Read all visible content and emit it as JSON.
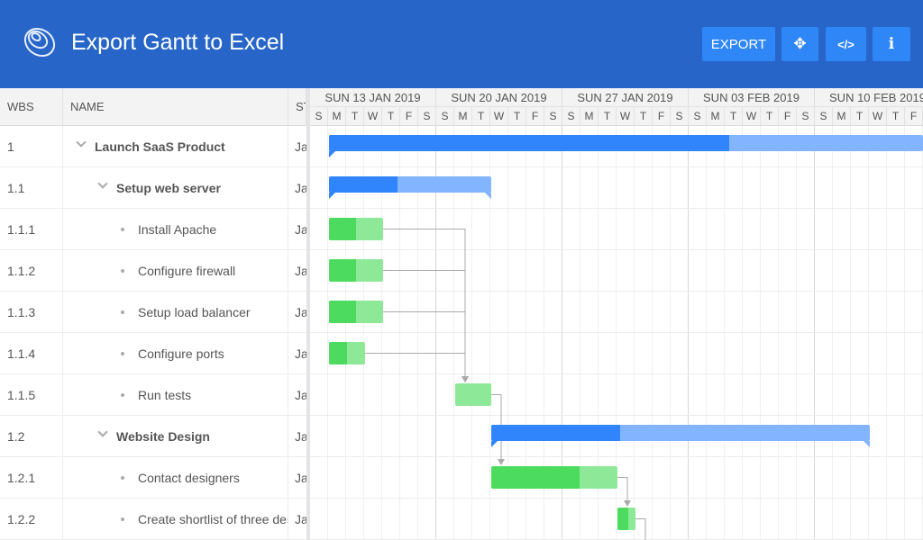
{
  "header": {
    "title": "Export Gantt to Excel",
    "buttons": [
      {
        "label": "EXPORT",
        "icon": "export"
      },
      {
        "label": "✥",
        "icon": "move-icon"
      },
      {
        "label": "</>",
        "icon": "code-icon"
      },
      {
        "label": "i",
        "icon": "info-icon"
      }
    ]
  },
  "colors": {
    "header": "#2766c8",
    "button": "#2f86f6",
    "parent_done": "#3185fc",
    "parent_todo": "#83b4ff",
    "task_done": "#4cdb5e",
    "task_todo": "#8de998"
  },
  "grid": {
    "columns": [
      "WBS",
      "NAME",
      "ST"
    ],
    "rows": [
      {
        "wbs": "1",
        "name": "Launch SaaS Product",
        "start": "Ja",
        "level": 0,
        "parent": true
      },
      {
        "wbs": "1.1",
        "name": "Setup web server",
        "start": "Ja",
        "level": 1,
        "parent": true
      },
      {
        "wbs": "1.1.1",
        "name": "Install Apache",
        "start": "Ja",
        "level": 2,
        "parent": false
      },
      {
        "wbs": "1.1.2",
        "name": "Configure firewall",
        "start": "Ja",
        "level": 2,
        "parent": false
      },
      {
        "wbs": "1.1.3",
        "name": "Setup load balancer",
        "start": "Ja",
        "level": 2,
        "parent": false
      },
      {
        "wbs": "1.1.4",
        "name": "Configure ports",
        "start": "Ja",
        "level": 2,
        "parent": false
      },
      {
        "wbs": "1.1.5",
        "name": "Run tests",
        "start": "Ja",
        "level": 2,
        "parent": false
      },
      {
        "wbs": "1.2",
        "name": "Website Design",
        "start": "Ja",
        "level": 1,
        "parent": true
      },
      {
        "wbs": "1.2.1",
        "name": "Contact designers",
        "start": "Ja",
        "level": 2,
        "parent": false
      },
      {
        "wbs": "1.2.2",
        "name": "Create shortlist of three designers",
        "start": "Ja",
        "level": 2,
        "parent": false
      }
    ]
  },
  "timeline": {
    "weeks": [
      "SUN 13 JAN 2019",
      "SUN 20 JAN 2019",
      "SUN 27 JAN 2019",
      "SUN 03 FEB 2019",
      "SUN 10 FEB 2019"
    ],
    "days": [
      "S",
      "M",
      "T",
      "W",
      "T",
      "F",
      "S"
    ]
  },
  "tasks": [
    {
      "row": 0,
      "start_day": 1,
      "duration_days": 37,
      "percent_done": 60
    },
    {
      "row": 1,
      "start_day": 1,
      "duration_days": 9,
      "percent_done": 42
    },
    {
      "row": 2,
      "start_day": 1,
      "duration_days": 3,
      "percent_done": 50
    },
    {
      "row": 3,
      "start_day": 1,
      "duration_days": 3,
      "percent_done": 50
    },
    {
      "row": 4,
      "start_day": 1,
      "duration_days": 3,
      "percent_done": 50
    },
    {
      "row": 5,
      "start_day": 1,
      "duration_days": 2,
      "percent_done": 50
    },
    {
      "row": 6,
      "start_day": 8,
      "duration_days": 2,
      "percent_done": 0
    },
    {
      "row": 7,
      "start_day": 10,
      "duration_days": 21,
      "percent_done": 34
    },
    {
      "row": 8,
      "start_day": 10,
      "duration_days": 7,
      "percent_done": 70
    },
    {
      "row": 9,
      "start_day": 17,
      "duration_days": 1,
      "percent_done": 60
    }
  ],
  "dependencies": [
    [
      2,
      6
    ],
    [
      3,
      6
    ],
    [
      4,
      6
    ],
    [
      5,
      6
    ],
    [
      6,
      8
    ],
    [
      8,
      9
    ],
    [
      9,
      10
    ]
  ]
}
